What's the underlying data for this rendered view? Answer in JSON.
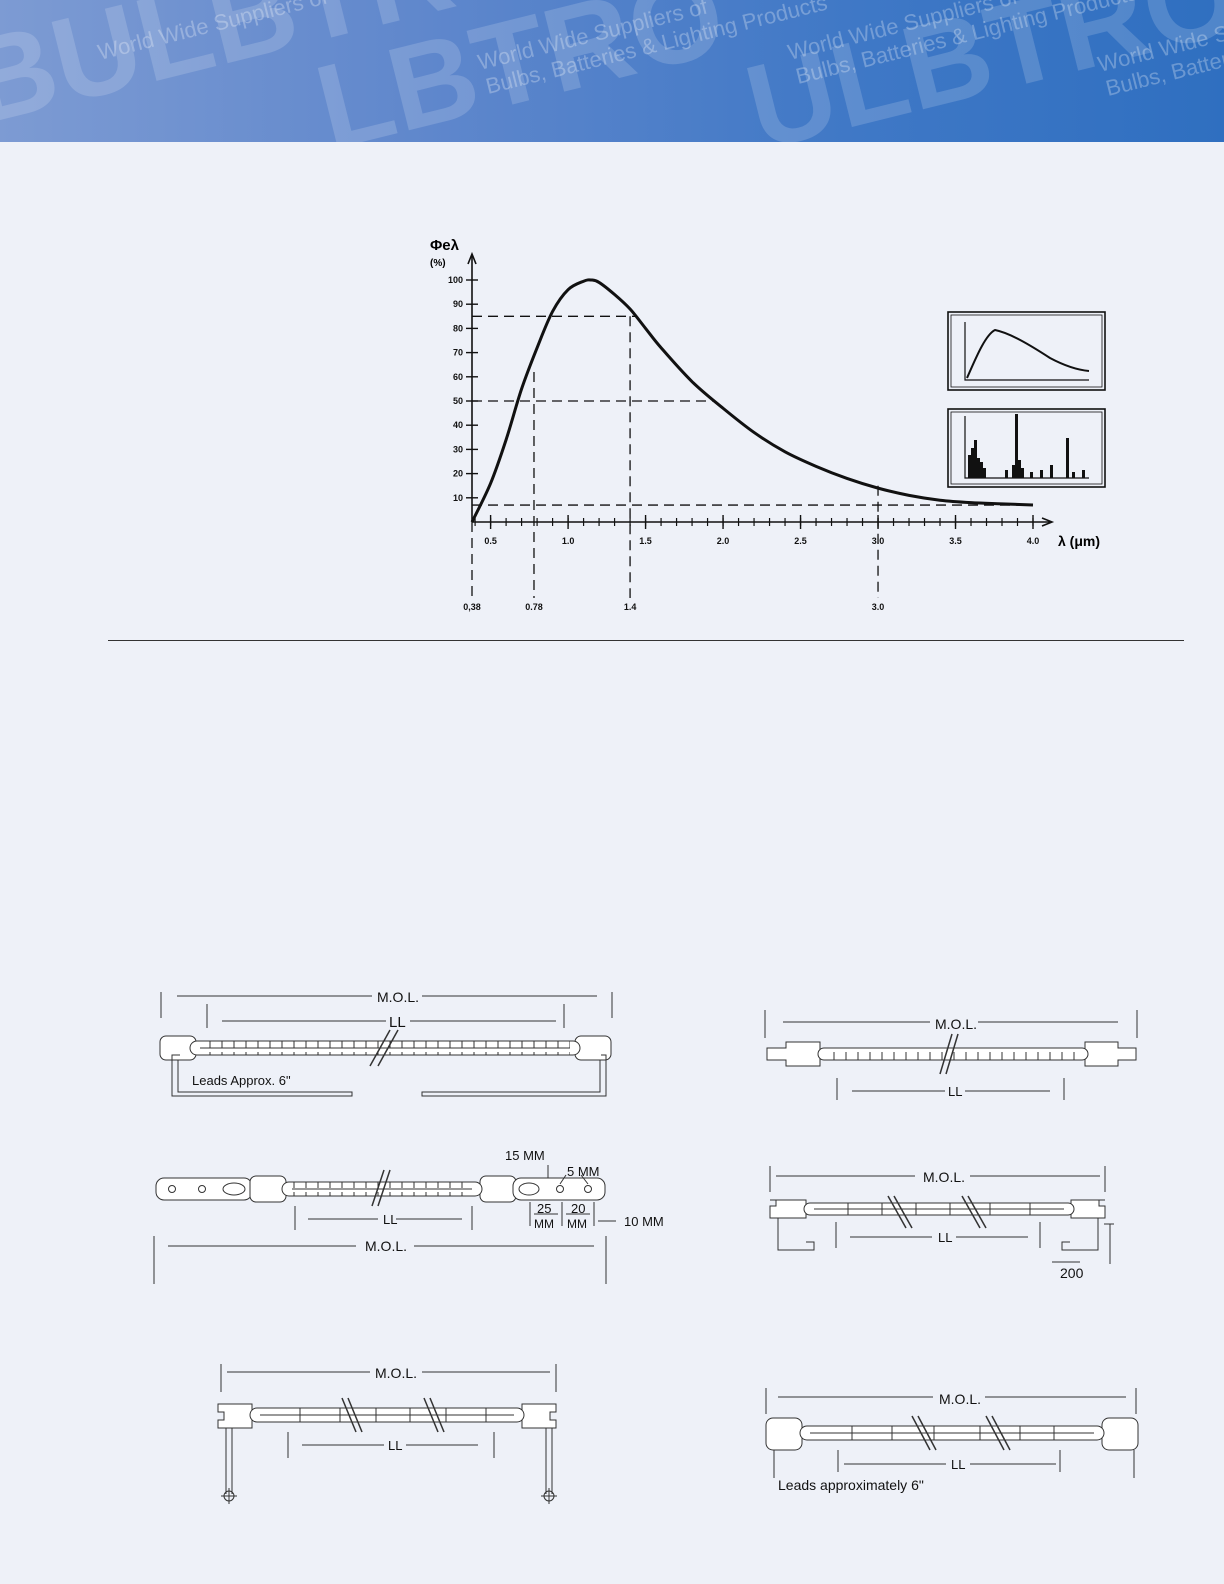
{
  "banner": {
    "logo_text": "BULBTRONICS",
    "tagline_lines": [
      "World Wide Suppliers of",
      "Bulbs, Batteries & Lighting Products"
    ]
  },
  "chart_data": {
    "type": "line",
    "title": "",
    "ylabel": "Φeλ",
    "yunit": "(%)",
    "xlabel": "λ (μm)",
    "ylim": [
      0,
      100
    ],
    "xlim": [
      0.38,
      4.0
    ],
    "y_ticks": [
      "10",
      "20",
      "30",
      "40",
      "50",
      "60",
      "70",
      "80",
      "90",
      "100"
    ],
    "x_ticks": [
      "0.5",
      "1.0",
      "1.5",
      "2.0",
      "2.5",
      "3.0",
      "3.5",
      "4.0"
    ],
    "series": [
      {
        "x": [
          0.38,
          0.5,
          0.6,
          0.7,
          0.8,
          0.9,
          1.0,
          1.1,
          1.15,
          1.2,
          1.3,
          1.4,
          1.5,
          1.6,
          1.8,
          2.0,
          2.2,
          2.4,
          2.6,
          2.8,
          3.0,
          3.2,
          3.4,
          3.6,
          3.8,
          4.0
        ],
        "y": [
          0,
          16,
          34,
          55,
          72,
          87,
          96,
          99.5,
          100,
          99,
          94,
          88,
          80,
          72,
          58,
          47,
          37,
          29,
          23,
          18,
          14,
          11,
          9,
          8,
          7.5,
          7
        ]
      }
    ],
    "guides": {
      "horizontal_values": [
        85,
        50,
        7
      ],
      "vertical_labels": [
        "0,38",
        "0.78",
        "1.4",
        "3.0"
      ],
      "vertical_values": [
        0.38,
        0.78,
        1.4,
        3.0
      ]
    }
  },
  "diagrams": {
    "d1": {
      "mol": "M.O.L.",
      "ll": "LL",
      "leads": "Leads Approx. 6\""
    },
    "d2": {
      "mol": "M.O.L.",
      "ll": "LL"
    },
    "d3": {
      "mol": "M.O.L.",
      "ll": "LL",
      "dim_15": "15 MM",
      "dim_5": "5 MM",
      "dim_25": "25",
      "dim_20": "20",
      "mm_a": "MM",
      "mm_b": "MM",
      "dim_10": "10 MM"
    },
    "d4": {
      "mol": "M.O.L.",
      "ll": "LL",
      "dim_200": "200"
    },
    "d5": {
      "mol": "M.O.L.",
      "ll": "LL"
    },
    "d6": {
      "mol": "M.O.L.",
      "ll": "LL",
      "leads": "Leads approximately 6\""
    }
  }
}
